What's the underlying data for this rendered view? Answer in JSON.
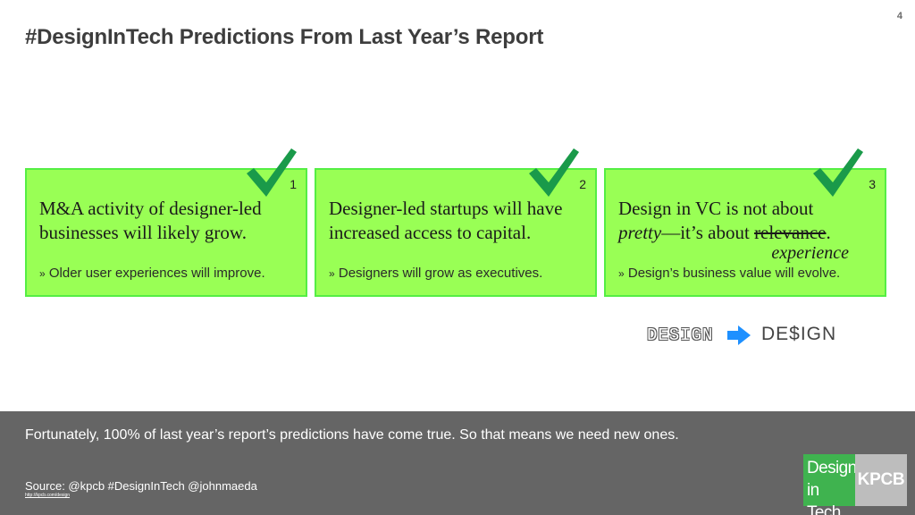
{
  "page_number": "4",
  "title": "#DesignInTech Predictions From Last Year’s Report",
  "cards": [
    {
      "number": "1",
      "main_line1": "M&A activity of designer-led",
      "main_line2": "businesses will likely grow.",
      "sub_marker": "»",
      "sub": "Older user experiences will improve.",
      "icon": "checkmark-icon"
    },
    {
      "number": "2",
      "main_line1": "Designer-led startups will have",
      "main_line2": "increased access to capital.",
      "sub_marker": "»",
      "sub": "Designers will grow as executives.",
      "icon": "checkmark-icon"
    },
    {
      "number": "3",
      "main_line1": "Design in VC is not about",
      "main_line2_italic": "pretty",
      "main_line2_mid": "—it’s about ",
      "main_line2_struck": "relevance",
      "main_line2_end": ".",
      "replacement": "experience",
      "sub_marker": "»",
      "sub": "Design’s business value will evolve.",
      "icon": "checkmark-icon"
    }
  ],
  "design_transform": {
    "from": "DESIGN",
    "to": "DE$IGN",
    "arrow_color": "#1e90ff",
    "icon": "right-arrow-icon"
  },
  "footer": {
    "text": "Fortunately, 100% of last year’s report’s predictions have come true. So that means we need new ones.",
    "source": "Source: @kpcb #DesignInTech @johnmaeda",
    "link": "http://kpcb.com/design"
  },
  "logo": {
    "left_line1": "Design",
    "left_line2": "in Tech",
    "right": "KPCB"
  },
  "colors": {
    "card_bg": "#99ff55",
    "check": "#1a9a4a",
    "footer_bg": "#656565",
    "logo_green": "#3fb34f",
    "logo_gray": "#bdbdbd"
  }
}
